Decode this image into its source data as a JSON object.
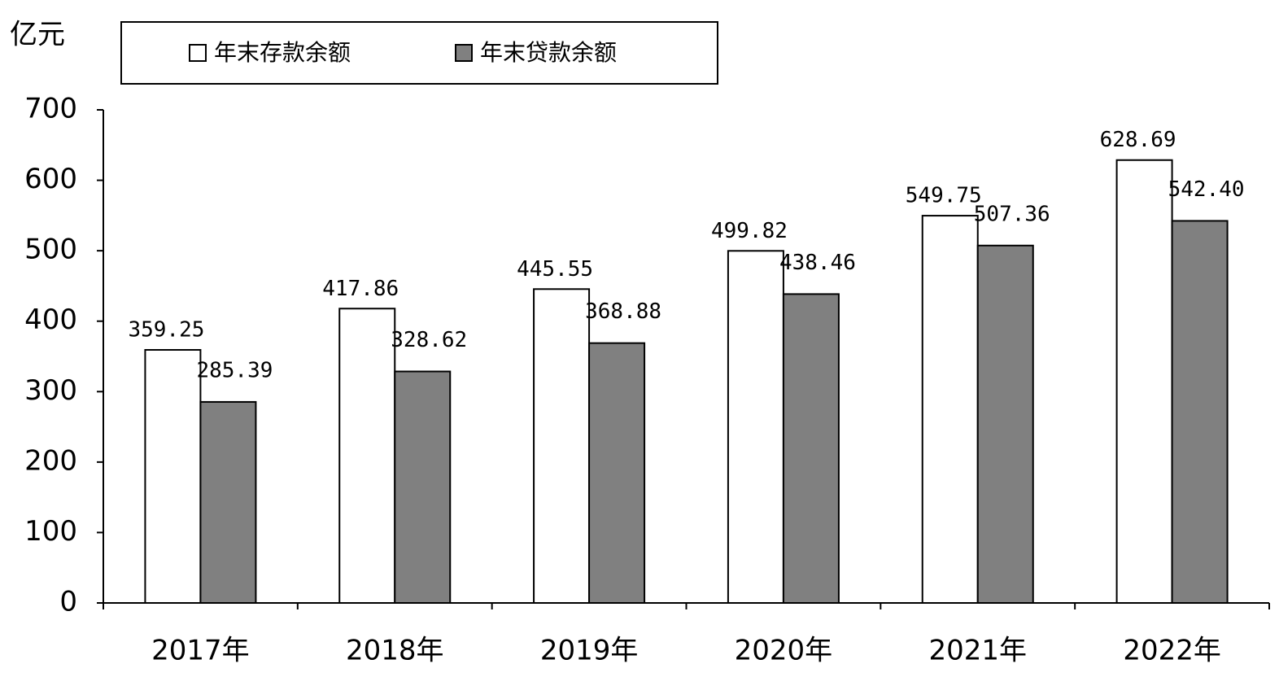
{
  "chart_data": {
    "type": "bar",
    "y_label": "亿元",
    "categories": [
      "2017年",
      "2018年",
      "2019年",
      "2020年",
      "2021年",
      "2022年"
    ],
    "series": [
      {
        "name": "年末存款余额",
        "color": "#ffffff",
        "values": [
          359.25,
          417.86,
          445.55,
          499.82,
          549.75,
          628.69
        ],
        "value_labels": [
          "359.25",
          "417.86",
          "445.55",
          "499.82",
          "549.75",
          "628.69"
        ]
      },
      {
        "name": "年末贷款余额",
        "color": "#808080",
        "values": [
          285.39,
          328.62,
          368.88,
          438.46,
          507.36,
          542.4
        ],
        "value_labels": [
          "285.39",
          "328.62",
          "368.88",
          "438.46",
          "507.36",
          "542.40"
        ]
      }
    ],
    "ylim": [
      0,
      700
    ],
    "yticks": [
      0,
      100,
      200,
      300,
      400,
      500,
      600,
      700
    ],
    "grid": false
  }
}
